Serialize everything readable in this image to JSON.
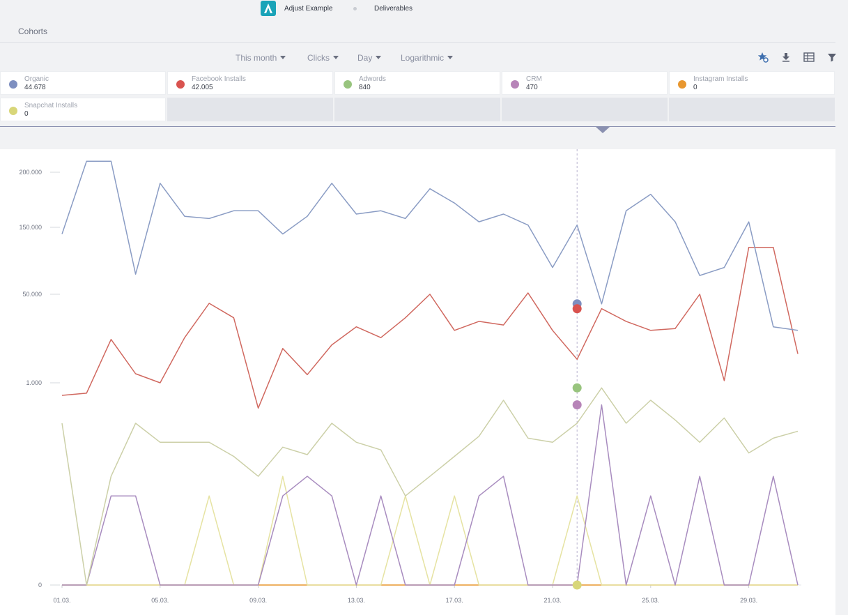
{
  "header": {
    "app_name": "Adjust Example",
    "breadcrumb": "Deliverables",
    "page_title": "Cohorts"
  },
  "toolbar": {
    "period": "This month",
    "metric": "Clicks",
    "interval": "Day",
    "scale": "Logarithmic",
    "icons": [
      "star-settings-icon",
      "download-icon",
      "table-icon",
      "filter-icon"
    ]
  },
  "legend": [
    {
      "name": "Organic",
      "value": "44.678",
      "color": "#7e8fc0"
    },
    {
      "name": "Facebook Installs",
      "value": "42.005",
      "color": "#d9534f"
    },
    {
      "name": "Adwords",
      "value": "840",
      "color": "#98c47e"
    },
    {
      "name": "CRM",
      "value": "470",
      "color": "#b784b8"
    },
    {
      "name": "Instagram Installs",
      "value": "0",
      "color": "#e8972f"
    },
    {
      "name": "Snapchat Installs",
      "value": "0",
      "color": "#d8d679"
    }
  ],
  "chart_data": {
    "type": "line",
    "y_scale": "logarithmic",
    "y_ticks": [
      "0",
      "1.000",
      "50.000",
      "150.000",
      "200.000"
    ],
    "x_ticks": [
      "01.03.",
      "05.03.",
      "09.03.",
      "13.03.",
      "17.03.",
      "21.03.",
      "25.03.",
      "29.03."
    ],
    "highlight_day": "22.03.",
    "grid": "horizontal",
    "series": [
      {
        "name": "Organic",
        "color": "#8a9cc4",
        "values": [
          140000,
          210000,
          210000,
          80000,
          190000,
          160000,
          158000,
          165000,
          165000,
          140000,
          160000,
          190000,
          162000,
          165000,
          158000,
          185000,
          172000,
          155000,
          162000,
          152000,
          90000,
          152000,
          44678,
          165000,
          180000,
          155000,
          78000,
          90000,
          155000,
          32000,
          30000
        ]
      },
      {
        "name": "Facebook Installs",
        "color": "#d0685f",
        "values": [
          650,
          700,
          25000,
          6000,
          1000,
          26000,
          45000,
          37000,
          420,
          20000,
          5500,
          22000,
          32000,
          26000,
          37000,
          50000,
          30000,
          35000,
          33000,
          52000,
          30000,
          14000,
          42005,
          35000,
          30000,
          31000,
          50000,
          2200,
          120000,
          120000,
          17000
        ]
      },
      {
        "name": "Adwords",
        "color": "#ccd0a8",
        "values": [
          250,
          0,
          40,
          250,
          130,
          130,
          130,
          80,
          40,
          110,
          85,
          250,
          130,
          100,
          20,
          40,
          80,
          160,
          550,
          150,
          130,
          250,
          840,
          250,
          550,
          280,
          130,
          300,
          90,
          150,
          190
        ]
      },
      {
        "name": "CRM",
        "color": "#a88cbf",
        "values": [
          0,
          0,
          20,
          20,
          0,
          0,
          0,
          0,
          0,
          20,
          40,
          20,
          0,
          20,
          0,
          0,
          0,
          20,
          40,
          0,
          0,
          0,
          470,
          0,
          20,
          0,
          40,
          0,
          0,
          40,
          0
        ]
      },
      {
        "name": "Instagram Installs",
        "color": "#e8972f",
        "values": [
          0,
          0,
          0,
          0,
          0,
          0,
          0,
          0,
          0,
          0,
          0,
          0,
          0,
          0,
          0,
          0,
          0,
          0,
          0,
          0,
          0,
          0,
          0,
          0,
          0,
          0,
          0,
          0,
          0,
          0,
          0
        ]
      },
      {
        "name": "Snapchat Installs",
        "color": "#e6e3a2",
        "values": [
          0,
          0,
          0,
          0,
          0,
          0,
          20,
          0,
          0,
          40,
          0,
          0,
          0,
          0,
          20,
          0,
          20,
          0,
          0,
          0,
          0,
          20,
          0,
          0,
          0,
          0,
          0,
          0,
          0,
          0,
          0
        ]
      }
    ]
  }
}
